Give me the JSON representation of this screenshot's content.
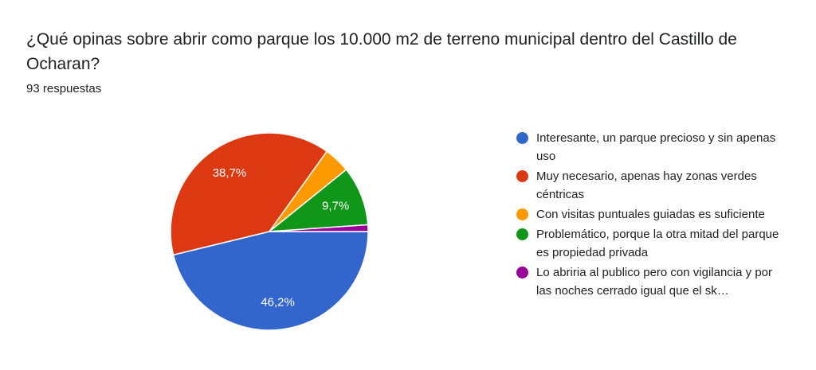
{
  "question": "¿Qué opinas sobre abrir como parque los 10.000 m2 de terreno municipal dentro del Castillo de Ocharan?",
  "responses": "93 respuestas",
  "chart_data": {
    "type": "pie",
    "slices": [
      {
        "label": "Interesante, un parque precioso y sin apenas uso",
        "value": 46.2,
        "display": "46,2%",
        "color": "#3366cc"
      },
      {
        "label": "Muy necesario, apenas hay zonas verdes céntricas",
        "value": 38.7,
        "display": "38,7%",
        "color": "#dc3912"
      },
      {
        "label": "Con visitas puntuales guiadas es suficiente",
        "value": 4.3,
        "display": "",
        "color": "#ff9900"
      },
      {
        "label": "Problemático, porque la otra mitad del parque es propiedad privada",
        "value": 9.7,
        "display": "9,7%",
        "color": "#109618"
      },
      {
        "label": "Lo abriria al publico pero con vigilancia y por las noches cerrado igual que el sk…",
        "value": 1.1,
        "display": "",
        "color": "#990099"
      }
    ]
  }
}
